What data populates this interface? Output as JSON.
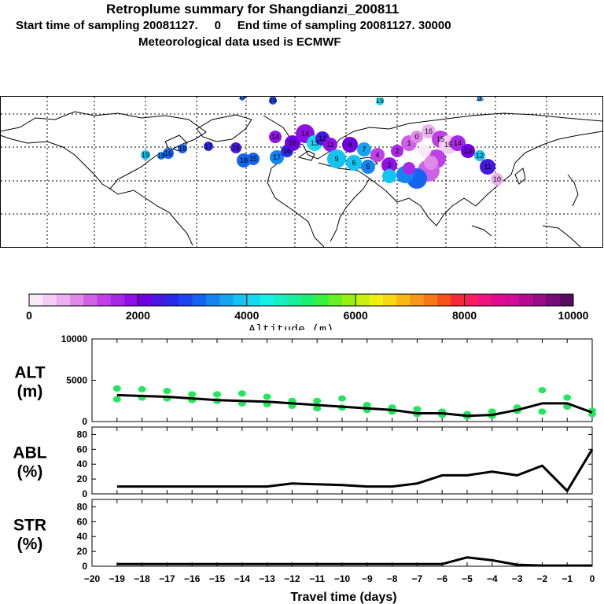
{
  "header": {
    "title": "Retroplume summary for Shangdianzi_200811",
    "start_line": "Start time of sampling 20081127.     0     End time of sampling 20081127. 30000",
    "met_line": "Meteorological data used is ECMWF"
  },
  "colorbar": {
    "colors": [
      "#f8e8f8",
      "#f2ccf4",
      "#ecb0f0",
      "#e08ae8",
      "#d060e8",
      "#c040e8",
      "#a828e8",
      "#9010e8",
      "#7000e0",
      "#4818e0",
      "#2c28e8",
      "#1c44f0",
      "#1464f0",
      "#1484f0",
      "#14a4f0",
      "#14c4f0",
      "#14dcf0",
      "#14f0e4",
      "#14f0c0",
      "#14f098",
      "#1cf070",
      "#38f040",
      "#68f020",
      "#98f010",
      "#c8f010",
      "#f0f010",
      "#f8d810",
      "#f8b810",
      "#f89818",
      "#f87818",
      "#f85018",
      "#f82838",
      "#f81c60",
      "#f01480",
      "#e00c90",
      "#d00c98",
      "#b80c90",
      "#980c88",
      "#780c78",
      "#580c60"
    ],
    "ticks": [
      "0",
      "2000",
      "4000",
      "6000",
      "8000",
      "10000"
    ],
    "label": "Altitude (m)"
  },
  "chart_data": [
    {
      "type": "line",
      "panel": "ALT",
      "ylabel_top": "ALT",
      "ylabel_bottom": "(m)",
      "ylim": [
        0,
        10000
      ],
      "yticks": [
        "0",
        "5000",
        "10000"
      ],
      "x": [
        -19,
        -18,
        -17,
        -16,
        -15,
        -14,
        -13,
        -12,
        -11,
        -10,
        -9,
        -8,
        -7,
        -6,
        -5,
        -4,
        -3,
        -2,
        -1,
        0
      ],
      "values": [
        3200,
        3100,
        3000,
        2800,
        2600,
        2500,
        2400,
        2200,
        2000,
        1800,
        1600,
        1400,
        1000,
        1000,
        700,
        800,
        1400,
        2200,
        2200,
        1100
      ],
      "scatter_series": {
        "name": "plume clusters",
        "color": "#20e858",
        "points": [
          [
            -19,
            4000
          ],
          [
            -19,
            2700
          ],
          [
            -18,
            3900
          ],
          [
            -18,
            2900
          ],
          [
            -17,
            3700
          ],
          [
            -17,
            2800
          ],
          [
            -16,
            3300
          ],
          [
            -16,
            2600
          ],
          [
            -15,
            3300
          ],
          [
            -15,
            2500
          ],
          [
            -14,
            3400
          ],
          [
            -14,
            2200
          ],
          [
            -13,
            3000
          ],
          [
            -13,
            2100
          ],
          [
            -12,
            2500
          ],
          [
            -12,
            1900
          ],
          [
            -11,
            2500
          ],
          [
            -11,
            1600
          ],
          [
            -10,
            2800
          ],
          [
            -10,
            1700
          ],
          [
            -9,
            2000
          ],
          [
            -9,
            1400
          ],
          [
            -8,
            1700
          ],
          [
            -8,
            1200
          ],
          [
            -7,
            1500
          ],
          [
            -7,
            900
          ],
          [
            -6,
            1200
          ],
          [
            -6,
            800
          ],
          [
            -5,
            900
          ],
          [
            -5,
            600
          ],
          [
            -4,
            1200
          ],
          [
            -4,
            700
          ],
          [
            -3,
            1700
          ],
          [
            -3,
            1300
          ],
          [
            -2,
            3800
          ],
          [
            -2,
            1200
          ],
          [
            -1,
            2900
          ],
          [
            -1,
            1800
          ],
          [
            0,
            1300
          ],
          [
            0,
            900
          ]
        ]
      }
    },
    {
      "type": "line",
      "panel": "ABL",
      "ylabel_top": "ABL",
      "ylabel_bottom": "(%)",
      "ylim": [
        0,
        90
      ],
      "yticks": [
        "0",
        "20",
        "40",
        "60",
        "80"
      ],
      "x": [
        -19,
        -18,
        -17,
        -16,
        -15,
        -14,
        -13,
        -12,
        -11,
        -10,
        -9,
        -8,
        -7,
        -6,
        -5,
        -4,
        -3,
        -2,
        -1,
        0
      ],
      "values": [
        10,
        10,
        10,
        10,
        10,
        10,
        10,
        14,
        13,
        12,
        10,
        10,
        14,
        25,
        25,
        30,
        25,
        38,
        4,
        60
      ]
    },
    {
      "type": "line",
      "panel": "STR",
      "ylabel_top": "STR",
      "ylabel_bottom": "(%)",
      "ylim": [
        0,
        90
      ],
      "yticks": [
        "0",
        "20",
        "40",
        "60",
        "80"
      ],
      "xlim": [
        -20,
        0
      ],
      "xticks": [
        "−20",
        "−19",
        "−18",
        "−17",
        "−16",
        "−15",
        "−14",
        "−13",
        "−12",
        "−11",
        "−10",
        "−9",
        "−8",
        "−7",
        "−6",
        "−5",
        "−4",
        "−3",
        "−2",
        "−1",
        "0"
      ],
      "xlabel": "Travel time (days)",
      "x": [
        -19,
        -18,
        -17,
        -16,
        -15,
        -14,
        -13,
        -12,
        -11,
        -10,
        -9,
        -8,
        -7,
        -6,
        -5,
        -4,
        -3,
        -2,
        -1,
        0
      ],
      "values": [
        3,
        3,
        3,
        3,
        3,
        3,
        3,
        3,
        3,
        3,
        3,
        3,
        3,
        3,
        12,
        8,
        2,
        1,
        1,
        1
      ]
    }
  ],
  "map": {
    "labels": [
      "19",
      "16",
      "19",
      "16",
      "19",
      "18",
      "16",
      "18",
      "17",
      "15",
      "18",
      "15",
      "17",
      "16",
      "14",
      "16",
      "14",
      "13",
      "12",
      "11",
      "9",
      "8",
      "7",
      "6",
      "5",
      "4",
      "3",
      "2",
      "1",
      "0",
      "16",
      "15",
      "15",
      "14",
      "13",
      "12",
      "11",
      "10"
    ]
  }
}
